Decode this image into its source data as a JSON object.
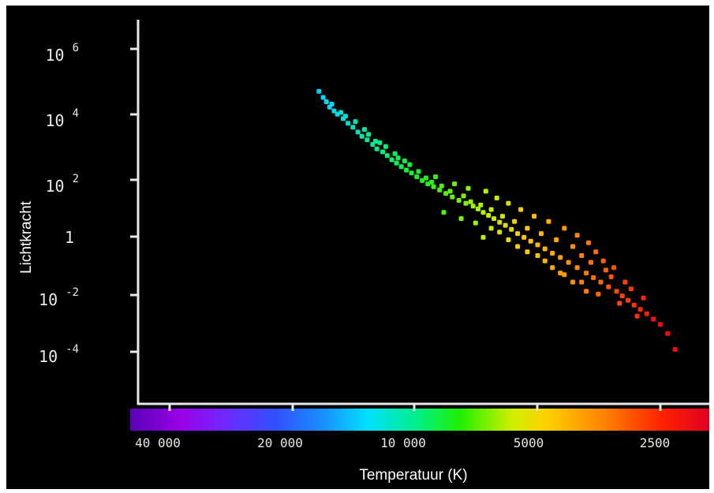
{
  "chart_data": {
    "type": "scatter",
    "title": "",
    "xlabel": "Temperatuur (K)",
    "ylabel": "Lichtkracht",
    "x_scale": "log-reversed",
    "y_scale": "log",
    "xlim": [
      50000,
      2200
    ],
    "ylim": [
      3e-06,
      3000000
    ],
    "x_ticks": [
      {
        "value": 40000,
        "label": "40 000"
      },
      {
        "value": 20000,
        "label": "20 000"
      },
      {
        "value": 10000,
        "label": "10 000"
      },
      {
        "value": 5000,
        "label": "5000"
      },
      {
        "value": 2500,
        "label": "2500"
      }
    ],
    "y_ticks": [
      {
        "value": 1000000,
        "base": "10",
        "exp": "6"
      },
      {
        "value": 10000,
        "base": "10",
        "exp": "4"
      },
      {
        "value": 100,
        "base": "10",
        "exp": "2"
      },
      {
        "value": 1,
        "base": "1",
        "exp": ""
      },
      {
        "value": 0.01,
        "base": "10",
        "exp": "-2"
      },
      {
        "value": 0.0001,
        "base": "10",
        "exp": "-4"
      }
    ],
    "colorbar": true,
    "legend": "none",
    "grid": false,
    "points": [
      [
        17200,
        40000
      ],
      [
        16800,
        25000
      ],
      [
        16500,
        18000
      ],
      [
        16200,
        12000
      ],
      [
        15800,
        9000
      ],
      [
        15500,
        7000
      ],
      [
        15000,
        5000
      ],
      [
        14600,
        3500
      ],
      [
        14200,
        2600
      ],
      [
        13800,
        1800
      ],
      [
        13500,
        1300
      ],
      [
        13100,
        1000
      ],
      [
        12700,
        700
      ],
      [
        12400,
        500
      ],
      [
        12000,
        400
      ],
      [
        11700,
        300
      ],
      [
        11400,
        220
      ],
      [
        11100,
        170
      ],
      [
        10800,
        130
      ],
      [
        10500,
        100
      ],
      [
        10200,
        80
      ],
      [
        9900,
        60
      ],
      [
        9600,
        45
      ],
      [
        9300,
        35
      ],
      [
        9000,
        28
      ],
      [
        8700,
        22
      ],
      [
        8400,
        17
      ],
      [
        8100,
        13
      ],
      [
        7800,
        10
      ],
      [
        7500,
        8
      ],
      [
        7200,
        6.5
      ],
      [
        7000,
        5.2
      ],
      [
        6800,
        4
      ],
      [
        6600,
        3.2
      ],
      [
        6400,
        2.5
      ],
      [
        6200,
        1.9
      ],
      [
        6000,
        1.5
      ],
      [
        5800,
        1.1
      ],
      [
        5600,
        0.8
      ],
      [
        5400,
        0.6
      ],
      [
        5200,
        0.45
      ],
      [
        5000,
        0.34
      ],
      [
        4800,
        0.25
      ],
      [
        4600,
        0.18
      ],
      [
        4400,
        0.13
      ],
      [
        4200,
        0.09
      ],
      [
        4000,
        0.06
      ],
      [
        3800,
        0.04
      ],
      [
        3650,
        0.028
      ],
      [
        3500,
        0.02
      ],
      [
        3350,
        0.014
      ],
      [
        3200,
        0.01
      ],
      [
        3100,
        0.007
      ],
      [
        3000,
        0.005
      ],
      [
        2900,
        0.0035
      ],
      [
        2800,
        0.0025
      ],
      [
        2700,
        0.0018
      ],
      [
        2600,
        0.0012
      ],
      [
        2500,
        0.0008
      ],
      [
        2400,
        0.0004
      ],
      [
        2300,
        0.00012
      ],
      [
        16000,
        15000
      ],
      [
        15200,
        8000
      ],
      [
        14000,
        4000
      ],
      [
        13000,
        1500
      ],
      [
        12500,
        900
      ],
      [
        11800,
        600
      ],
      [
        11000,
        250
      ],
      [
        10300,
        150
      ],
      [
        9800,
        90
      ],
      [
        9400,
        55
      ],
      [
        9100,
        40
      ],
      [
        8600,
        30
      ],
      [
        8200,
        20
      ],
      [
        7600,
        14
      ],
      [
        7300,
        9
      ],
      [
        6900,
        7
      ],
      [
        6500,
        5
      ],
      [
        6100,
        3
      ],
      [
        5700,
        2
      ],
      [
        5300,
        1.2
      ],
      [
        4900,
        0.8
      ],
      [
        4500,
        0.5
      ],
      [
        4100,
        0.3
      ],
      [
        3900,
        0.15
      ],
      [
        3700,
        0.09
      ],
      [
        3400,
        0.05
      ],
      [
        3300,
        0.03
      ],
      [
        3050,
        0.02
      ],
      [
        2950,
        0.012
      ],
      [
        2750,
        0.006
      ],
      [
        14800,
        6000
      ],
      [
        13300,
        2200
      ],
      [
        12200,
        800
      ],
      [
        11200,
        350
      ],
      [
        10600,
        200
      ],
      [
        8900,
        60
      ],
      [
        8000,
        35
      ],
      [
        7400,
        25
      ],
      [
        6700,
        20
      ],
      [
        6300,
        12
      ],
      [
        5900,
        8
      ],
      [
        5500,
        5
      ],
      [
        5100,
        3
      ],
      [
        4700,
        2
      ],
      [
        4300,
        1.2
      ],
      [
        4000,
        0.7
      ],
      [
        3750,
        0.4
      ],
      [
        3600,
        0.2
      ],
      [
        3450,
        0.1
      ],
      [
        3250,
        0.06
      ],
      [
        6800,
        0.6
      ],
      [
        6200,
        0.9
      ],
      [
        5600,
        0.3
      ],
      [
        5000,
        0.15
      ],
      [
        4600,
        0.06
      ],
      [
        4300,
        0.035
      ],
      [
        3900,
        0.02
      ],
      [
        3550,
        0.008
      ],
      [
        3150,
        0.004
      ],
      [
        2850,
        0.0015
      ],
      [
        8500,
        4
      ],
      [
        7700,
        2.5
      ],
      [
        7100,
        1.8
      ],
      [
        6500,
        1.2
      ],
      [
        5900,
        0.5
      ],
      [
        5300,
        0.2
      ],
      [
        4800,
        0.1
      ],
      [
        4400,
        0.04
      ],
      [
        4100,
        0.02
      ],
      [
        3800,
        0.01
      ]
    ]
  }
}
